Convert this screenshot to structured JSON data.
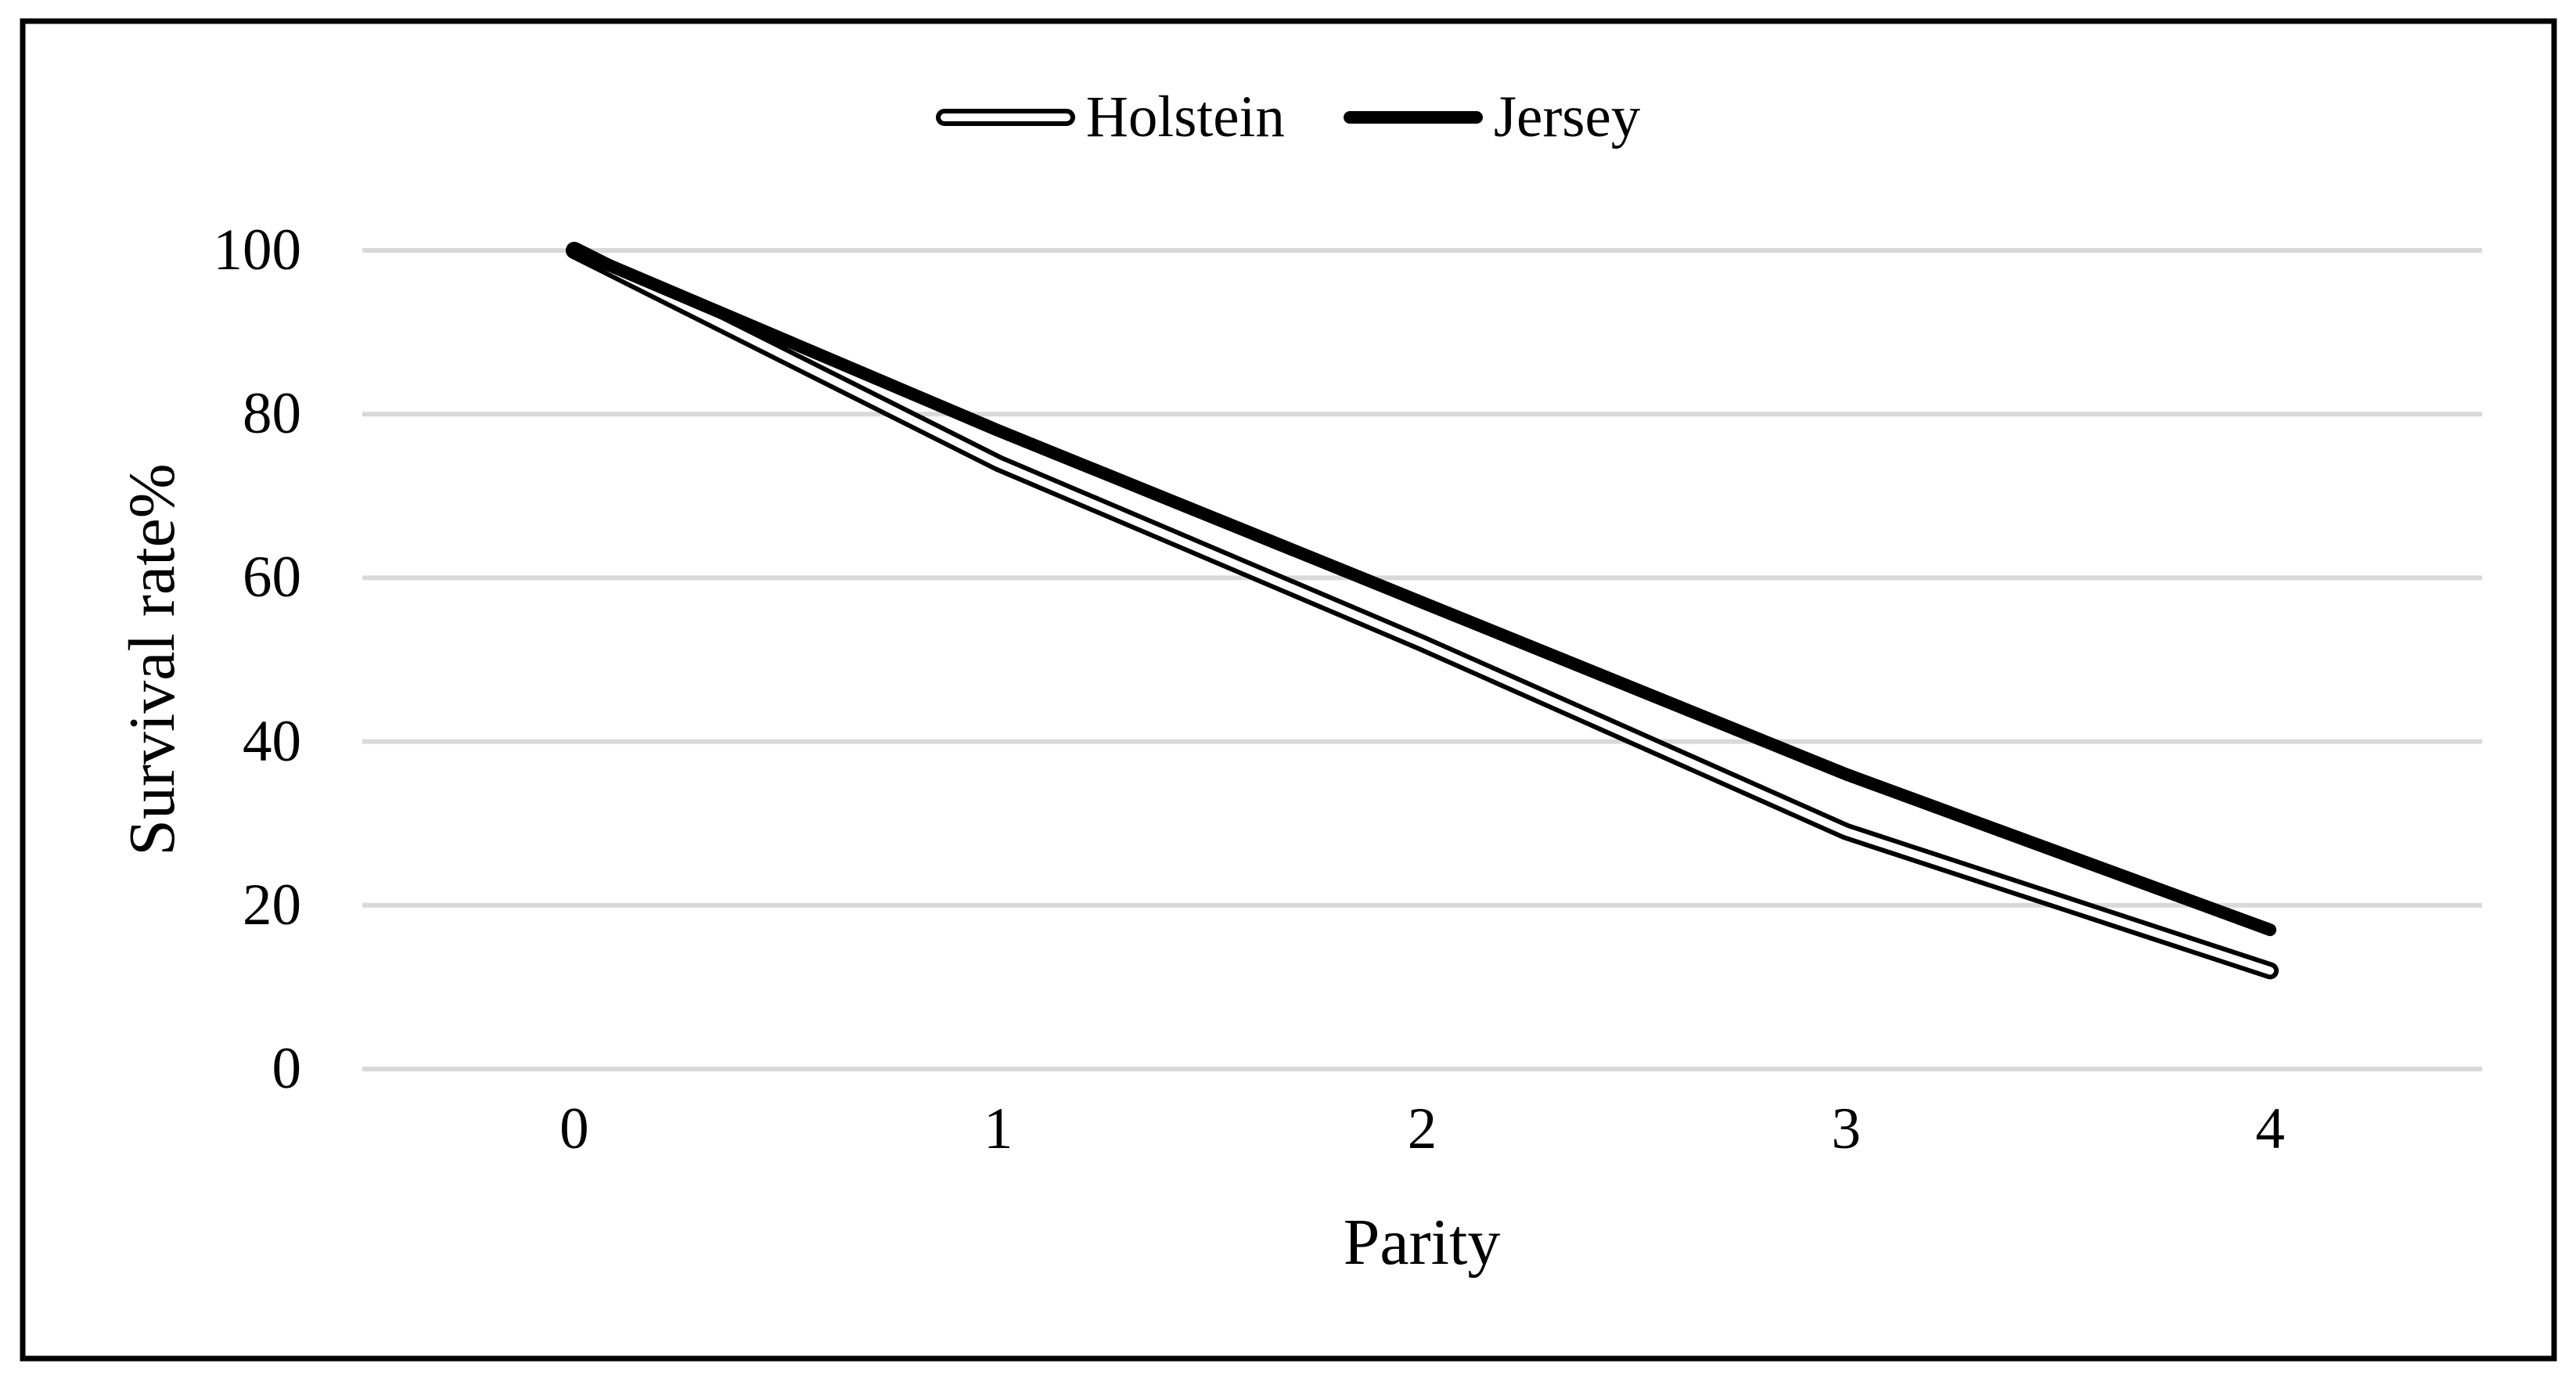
{
  "chart_data": {
    "type": "line",
    "title": "",
    "xlabel": "Parity",
    "ylabel": "Survival rate%",
    "x": [
      0,
      1,
      2,
      3,
      4
    ],
    "x_tick_labels": [
      "0",
      "1",
      "2",
      "3",
      "4"
    ],
    "y_tick_labels": [
      "100",
      "80",
      "60",
      "40",
      "20",
      "0"
    ],
    "ylim": [
      0,
      100
    ],
    "y_tick_step": 20,
    "grid": "horizontal-only",
    "legend_position": "top-center",
    "colors": {
      "series": "#000000",
      "gridline": "#d9d9d9",
      "background": "#ffffff",
      "frame": "#000000"
    },
    "series": [
      {
        "name": "Holstein",
        "style": "double-outline",
        "values": [
          100,
          74,
          52,
          29,
          12
        ]
      },
      {
        "name": "Jersey",
        "style": "solid-thick",
        "values": [
          100,
          78,
          57,
          36,
          17
        ]
      }
    ]
  }
}
